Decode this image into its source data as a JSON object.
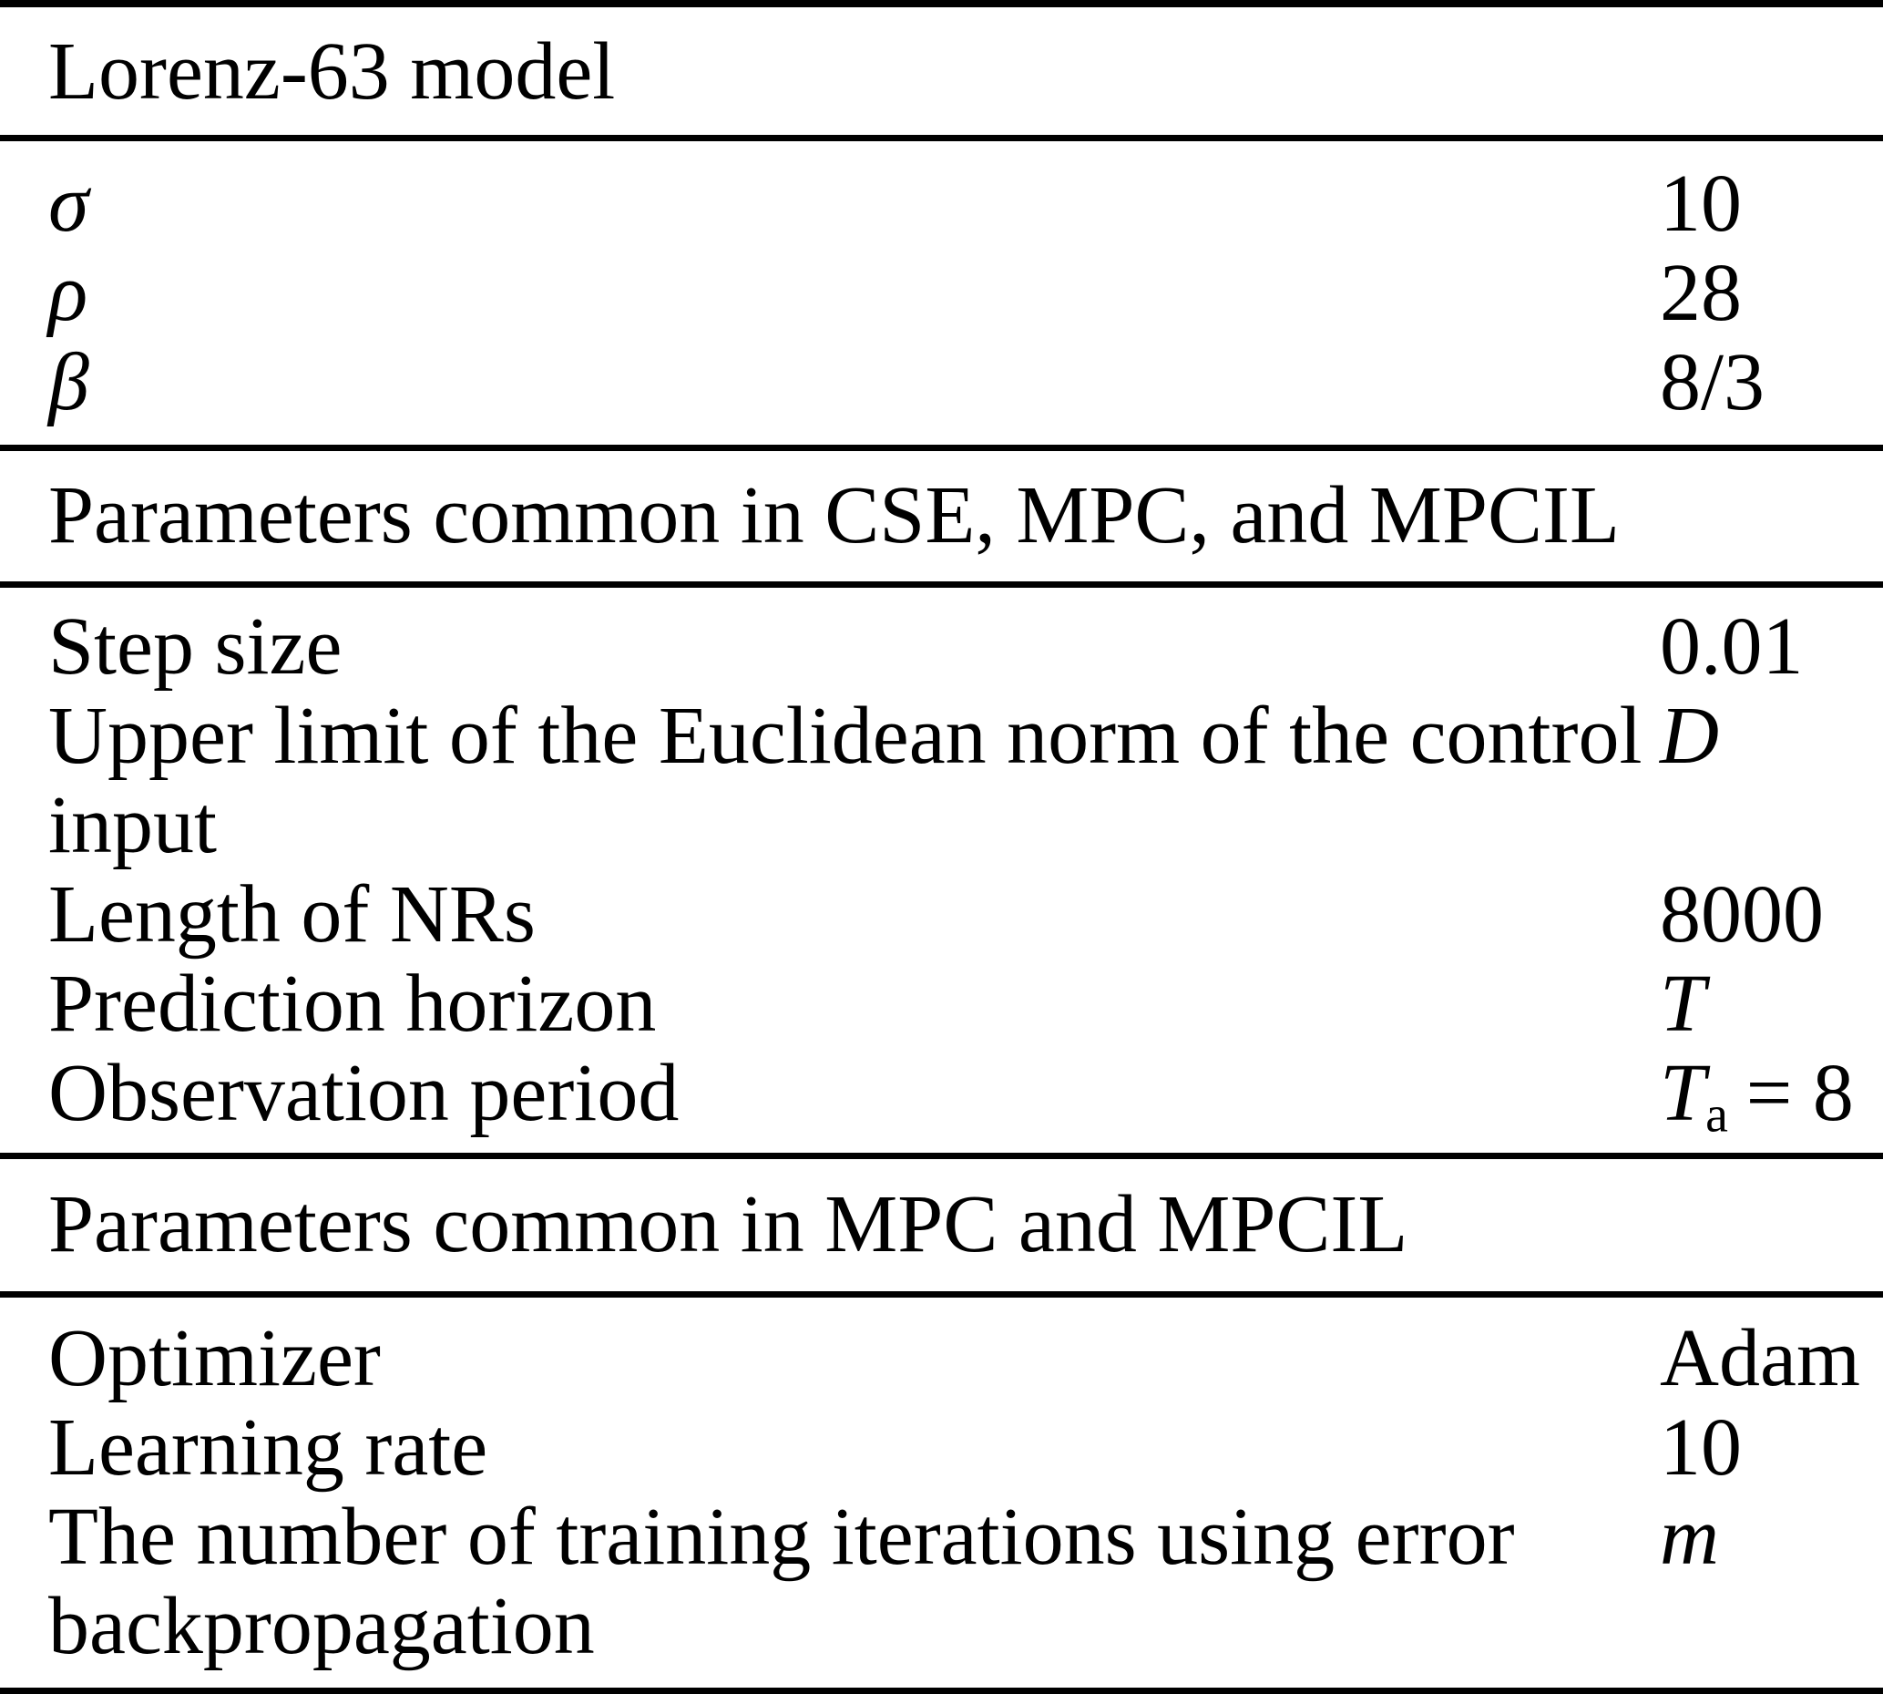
{
  "table": {
    "section1_header": "Lorenz-63 model",
    "lorenz_rows": [
      {
        "label": "σ",
        "value": "10"
      },
      {
        "label": "ρ",
        "value": "28"
      },
      {
        "label": "β",
        "value": "8/3"
      }
    ],
    "section2_header": "Parameters common in CSE, MPC, and MPCIL",
    "common_rows": [
      {
        "label": "Step size",
        "value": "0.01"
      },
      {
        "label": "Upper limit of the Euclidean norm of the control input",
        "value": "D"
      },
      {
        "label": "Length of NRs",
        "value": "8000"
      },
      {
        "label": "Prediction horizon",
        "value": "T"
      },
      {
        "label": "Observation period",
        "value_base": "T",
        "value_sub": "a",
        "value_eq": "= 8"
      }
    ],
    "section3_header": "Parameters common in MPC and MPCIL",
    "mpc_rows": [
      {
        "label": "Optimizer",
        "value": "Adam"
      },
      {
        "label": "Learning rate",
        "value": "10"
      },
      {
        "label": "The number of training iterations using error backpropagation",
        "value": "m"
      }
    ]
  }
}
